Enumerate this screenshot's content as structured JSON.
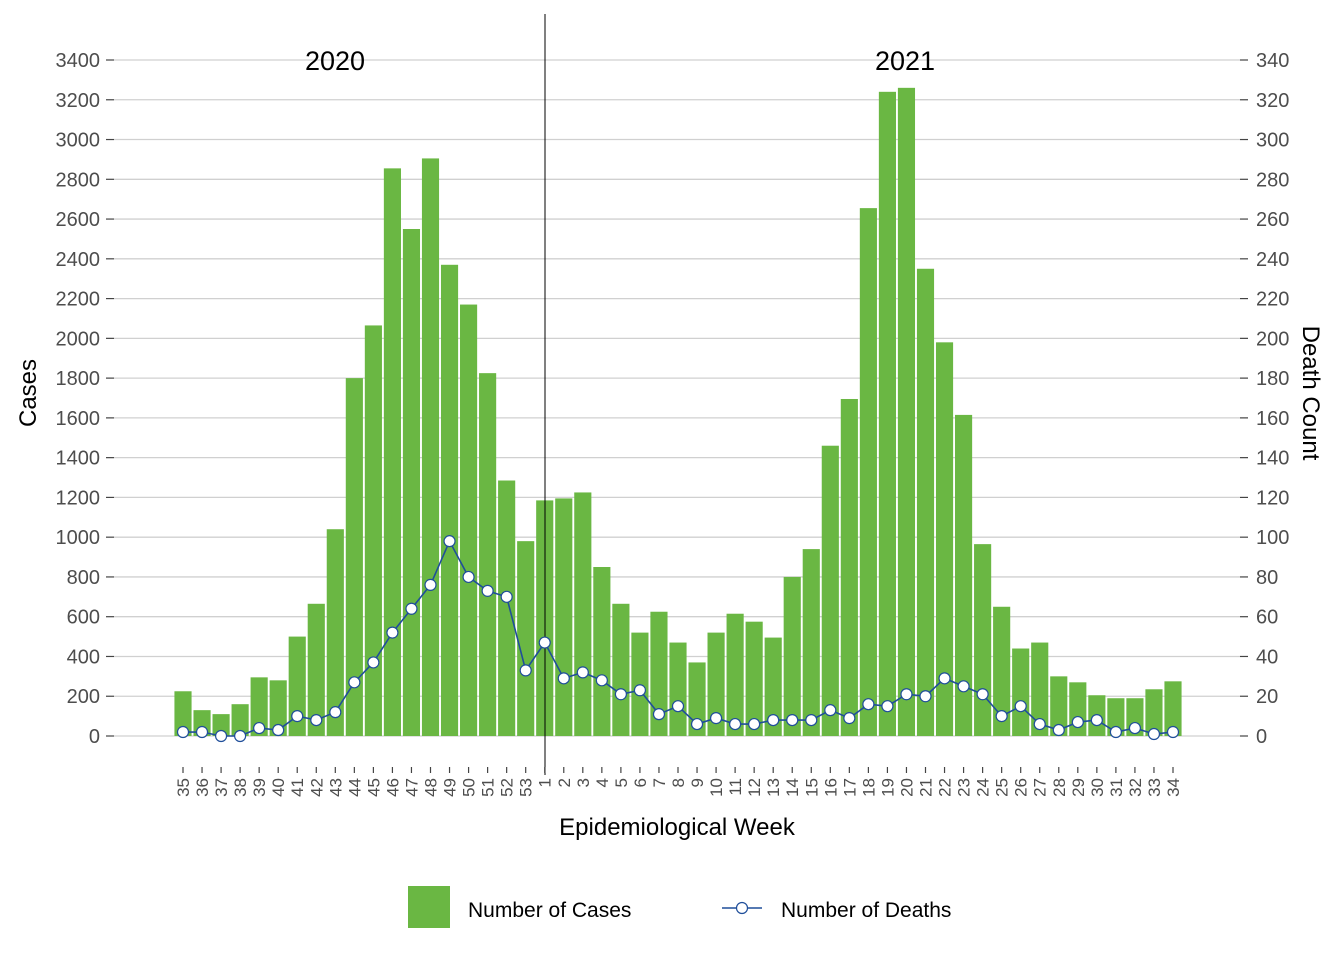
{
  "chart_data": {
    "type": "bar+line",
    "xlabel": "Epidemiological Week",
    "ylabel": "Cases",
    "y2label": "Death Count",
    "ylim": [
      0,
      3400
    ],
    "y2lim": [
      0,
      340
    ],
    "yticks": [
      0,
      200,
      400,
      600,
      800,
      1000,
      1200,
      1400,
      1600,
      1800,
      2000,
      2200,
      2400,
      2600,
      2800,
      3000,
      3200,
      3400
    ],
    "y2ticks": [
      0,
      20,
      40,
      60,
      80,
      100,
      120,
      140,
      160,
      180,
      200,
      220,
      240,
      260,
      280,
      300,
      320,
      340
    ],
    "grid": true,
    "year_labels": [
      "2020",
      "2021"
    ],
    "categories": [
      "35",
      "36",
      "37",
      "38",
      "39",
      "40",
      "41",
      "42",
      "43",
      "44",
      "45",
      "46",
      "47",
      "48",
      "49",
      "50",
      "51",
      "52",
      "53",
      "1",
      "2",
      "3",
      "4",
      "5",
      "6",
      "7",
      "8",
      "9",
      "10",
      "11",
      "12",
      "13",
      "14",
      "15",
      "16",
      "17",
      "18",
      "19",
      "20",
      "21",
      "22",
      "23",
      "24",
      "25",
      "26",
      "27",
      "28",
      "29",
      "30",
      "31",
      "32",
      "33",
      "34"
    ],
    "series": [
      {
        "name": "Number of Cases",
        "axis": "left",
        "kind": "bar",
        "color": "#6ab743",
        "values": [
          225,
          130,
          110,
          160,
          295,
          280,
          500,
          665,
          1040,
          1800,
          2065,
          2855,
          2550,
          2905,
          2370,
          2170,
          1825,
          1285,
          980,
          1185,
          1195,
          1225,
          850,
          665,
          520,
          625,
          470,
          370,
          520,
          615,
          575,
          495,
          800,
          940,
          1460,
          1695,
          2655,
          3240,
          3260,
          2350,
          1980,
          1615,
          965,
          650,
          440,
          470,
          300,
          270,
          205,
          190,
          190,
          235,
          275
        ]
      },
      {
        "name": "Number of Deaths",
        "axis": "right",
        "kind": "line",
        "color": "#1f4e9a",
        "values": [
          2,
          2,
          0,
          0,
          4,
          3,
          10,
          8,
          12,
          27,
          37,
          52,
          64,
          76,
          98,
          80,
          73,
          70,
          33,
          47,
          29,
          32,
          28,
          21,
          23,
          11,
          15,
          6,
          9,
          6,
          6,
          8,
          8,
          8,
          13,
          9,
          16,
          15,
          21,
          20,
          29,
          25,
          21,
          10,
          15,
          6,
          3,
          7,
          8,
          2,
          4,
          1,
          2
        ]
      }
    ],
    "legend": {
      "placement": "bottom",
      "items": [
        "Number of Cases",
        "Number of Deaths"
      ]
    }
  }
}
